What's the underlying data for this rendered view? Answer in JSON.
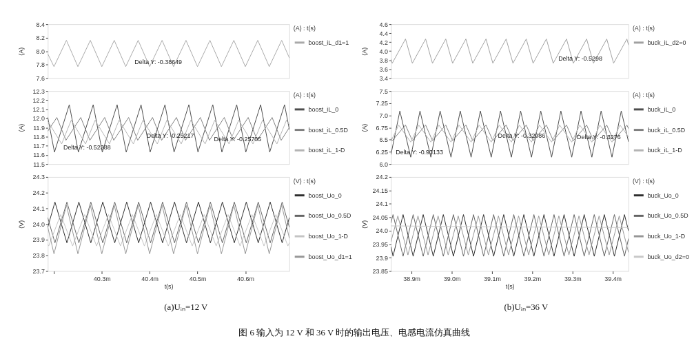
{
  "chart_data": [
    {
      "type": "line",
      "xlim": [
        40.187,
        40.692
      ],
      "ylim": [
        7.6,
        8.4
      ],
      "yticks": [
        7.6,
        7.8,
        {
          "value": 8,
          "label": "8.0"
        },
        8.2,
        8.4
      ],
      "ylabel": "(A)",
      "legend_title": "(A) : t(s)",
      "legend": "right",
      "tick_labels": "y",
      "series": [
        {
          "name": "boost_iL_d1=1",
          "color": "#a9a9a9",
          "x": [
            40.187,
            40.2,
            40.226,
            40.25,
            40.276,
            40.3,
            40.326,
            40.35,
            40.376,
            40.4,
            40.426,
            40.45,
            40.476,
            40.5,
            40.526,
            40.55,
            40.576,
            40.6,
            40.626,
            40.65,
            40.676,
            40.692
          ],
          "values": [
            7.96,
            7.77,
            8.16,
            7.77,
            8.16,
            7.77,
            8.16,
            7.77,
            8.16,
            7.77,
            8.16,
            7.77,
            8.16,
            7.77,
            8.16,
            7.77,
            8.16,
            7.77,
            8.16,
            7.77,
            8.16,
            7.9
          ]
        }
      ],
      "annotations": [
        {
          "text": "Delta Y: -0.38649",
          "x": 40.4,
          "y": 7.77
        }
      ]
    },
    {
      "type": "line",
      "xlim": [
        40.187,
        40.692
      ],
      "ylim": [
        11.5,
        12.3
      ],
      "yticks": [
        11.5,
        11.6,
        11.7,
        11.8,
        11.9,
        {
          "value": 12,
          "label": "12.0"
        },
        12.1,
        12.2,
        12.3
      ],
      "ylabel": "(A)",
      "legend_title": "(A) : t(s)",
      "legend": "right",
      "tick_labels": "y",
      "series": [
        {
          "name": "boost_iL_0",
          "color": "#4d4d4d",
          "x": [
            40.187,
            40.201,
            40.232,
            40.251,
            40.282,
            40.301,
            40.332,
            40.351,
            40.382,
            40.401,
            40.432,
            40.451,
            40.482,
            40.501,
            40.532,
            40.551,
            40.582,
            40.601,
            40.632,
            40.651,
            40.682,
            40.692
          ],
          "values": [
            12.01,
            11.63,
            12.15,
            11.63,
            12.15,
            11.63,
            12.15,
            11.63,
            12.15,
            11.63,
            12.15,
            11.63,
            12.15,
            11.63,
            12.15,
            11.63,
            12.15,
            11.63,
            12.15,
            11.63,
            12.15,
            11.88
          ]
        },
        {
          "name": "boost_iL_0.5D",
          "color": "#7f7f7f",
          "x": [
            40.187,
            40.206,
            40.225,
            40.256,
            40.275,
            40.306,
            40.325,
            40.356,
            40.375,
            40.406,
            40.425,
            40.456,
            40.475,
            40.506,
            40.525,
            40.556,
            40.575,
            40.606,
            40.625,
            40.656,
            40.675,
            40.692
          ],
          "values": [
            11.86,
            12.01,
            11.76,
            12.01,
            11.76,
            12.01,
            11.76,
            12.01,
            11.76,
            12.01,
            11.76,
            12.01,
            11.76,
            12.01,
            11.76,
            12.01,
            11.76,
            12.01,
            11.76,
            12.01,
            11.76,
            11.9
          ]
        },
        {
          "name": "boost_iL_1-D",
          "color": "#b4b4b4",
          "x": [
            40.187,
            40.216,
            40.236,
            40.266,
            40.286,
            40.316,
            40.336,
            40.366,
            40.386,
            40.416,
            40.436,
            40.466,
            40.486,
            40.516,
            40.536,
            40.566,
            40.586,
            40.616,
            40.636,
            40.666,
            40.686,
            40.692
          ],
          "values": [
            11.97,
            11.72,
            11.98,
            11.72,
            11.98,
            11.72,
            11.98,
            11.72,
            11.98,
            11.72,
            11.98,
            11.72,
            11.98,
            11.72,
            11.98,
            11.72,
            11.98,
            11.72,
            11.98,
            11.72,
            11.98,
            11.93
          ]
        }
      ],
      "annotations": [
        {
          "text": "Delta Y: -0.52388",
          "x": 40.251,
          "y": 11.63
        },
        {
          "text": "Delta Y: -0.25217",
          "x": 40.425,
          "y": 11.76
        },
        {
          "text": "Delta Y: -0.25705",
          "x": 40.566,
          "y": 11.72
        }
      ]
    },
    {
      "type": "line",
      "xlim": [
        40.187,
        40.692
      ],
      "ylim": [
        23.7,
        24.3
      ],
      "xticks": [
        {
          "value": 40.2,
          "label": null
        },
        {
          "value": 40.3,
          "label": "40.3m"
        },
        {
          "value": 40.4,
          "label": "40.4m"
        },
        {
          "value": 40.5,
          "label": "40.5m"
        },
        {
          "value": 40.6,
          "label": "40.6m"
        }
      ],
      "yticks": [
        23.7,
        23.8,
        23.9,
        {
          "value": 24,
          "label": "24.0"
        },
        24.1,
        24.2,
        24.3
      ],
      "xlabel": "t(s)",
      "ylabel": "(V)",
      "legend_title": "(V) : t(s)",
      "legend": "right",
      "series": [
        {
          "name": "boost_Uo_0",
          "color": "#2e2e2e",
          "x": [
            40.187,
            40.202,
            40.227,
            40.252,
            40.277,
            40.302,
            40.327,
            40.352,
            40.377,
            40.402,
            40.427,
            40.452,
            40.477,
            40.502,
            40.527,
            40.552,
            40.577,
            40.602,
            40.627,
            40.652,
            40.677,
            40.692
          ],
          "values": [
            23.98,
            24.14,
            23.88,
            24.14,
            23.88,
            24.14,
            23.88,
            24.14,
            23.88,
            24.14,
            23.88,
            24.14,
            23.88,
            24.14,
            23.88,
            24.14,
            23.88,
            24.14,
            23.88,
            24.14,
            23.88,
            24.04
          ]
        },
        {
          "name": "boost_Uo_0.5D",
          "color": "#646464",
          "x": [
            40.187,
            40.202,
            40.227,
            40.252,
            40.277,
            40.302,
            40.327,
            40.352,
            40.377,
            40.402,
            40.427,
            40.452,
            40.477,
            40.502,
            40.527,
            40.552,
            40.577,
            40.602,
            40.627,
            40.652,
            40.677,
            40.692
          ],
          "values": [
            24.04,
            23.88,
            24.14,
            23.88,
            24.14,
            23.88,
            24.14,
            23.88,
            24.14,
            23.88,
            24.14,
            23.88,
            24.14,
            23.88,
            24.14,
            23.88,
            24.14,
            23.88,
            24.14,
            23.88,
            24.14,
            23.98
          ]
        },
        {
          "name": "boost_Uo_1-D",
          "color": "#c4c4c4",
          "x": [
            40.187,
            40.189,
            40.214,
            40.239,
            40.264,
            40.289,
            40.314,
            40.339,
            40.364,
            40.389,
            40.414,
            40.439,
            40.464,
            40.489,
            40.514,
            40.539,
            40.564,
            40.589,
            40.614,
            40.639,
            40.664,
            40.689,
            40.692
          ],
          "values": [
            23.87,
            23.86,
            24.06,
            23.86,
            24.06,
            23.86,
            24.06,
            23.86,
            24.06,
            23.86,
            24.06,
            23.86,
            24.06,
            23.86,
            24.06,
            23.86,
            24.06,
            23.86,
            24.06,
            23.86,
            24.06,
            23.86,
            23.88
          ]
        },
        {
          "name": "boost_Uo_d1=1",
          "color": "#969696",
          "x": [
            40.187,
            40.2,
            40.226,
            40.25,
            40.276,
            40.3,
            40.326,
            40.35,
            40.376,
            40.4,
            40.426,
            40.45,
            40.476,
            40.5,
            40.526,
            40.55,
            40.576,
            40.6,
            40.626,
            40.65,
            40.676,
            40.692
          ],
          "values": [
            23.98,
            23.81,
            24.12,
            23.81,
            24.12,
            23.81,
            24.12,
            23.81,
            24.12,
            23.81,
            24.12,
            23.81,
            24.12,
            23.81,
            24.12,
            23.81,
            24.12,
            23.81,
            24.12,
            23.81,
            24.12,
            23.91
          ]
        }
      ],
      "annotations": [
        "(a)Uᵢₙ=12 V"
      ]
    },
    {
      "type": "line",
      "xlim": [
        38.849,
        39.439
      ],
      "ylim": [
        3.4,
        4.6
      ],
      "yticks": [
        3.4,
        3.6,
        3.8,
        {
          "value": 4,
          "label": "4.0"
        },
        4.2,
        4.4,
        4.6
      ],
      "ylabel": "(A)",
      "legend_title": "(A) : t(s)",
      "legend": "right",
      "tick_labels": "y",
      "series": [
        {
          "name": "buck_iL_d2=0",
          "color": "#a0a0a0",
          "x": [
            38.849,
            38.852,
            38.885,
            38.902,
            38.935,
            38.952,
            38.985,
            39.002,
            39.035,
            39.052,
            39.085,
            39.102,
            39.135,
            39.152,
            39.185,
            39.202,
            39.235,
            39.252,
            39.285,
            39.302,
            39.335,
            39.352,
            39.385,
            39.402,
            39.435,
            39.439
          ],
          "values": [
            3.82,
            3.73,
            4.27,
            3.73,
            4.27,
            3.73,
            4.27,
            3.73,
            4.27,
            3.73,
            4.27,
            3.73,
            4.27,
            3.73,
            4.27,
            3.73,
            4.27,
            3.73,
            4.27,
            3.73,
            4.27,
            3.73,
            4.27,
            3.73,
            4.27,
            4.14
          ]
        }
      ],
      "annotations": [
        {
          "text": "Delta Y: -0.5298",
          "x": 39.302,
          "y": 3.73
        }
      ]
    },
    {
      "type": "line",
      "xlim": [
        38.849,
        39.439
      ],
      "ylim": [
        6,
        7.5
      ],
      "yticks": [
        {
          "value": 6,
          "label": "6.0"
        },
        6.25,
        6.5,
        6.75,
        {
          "value": 7,
          "label": "7.0"
        },
        7.25,
        7.5
      ],
      "ylabel": "(A)",
      "legend_title": "(A) : t(s)",
      "legend": "right",
      "tick_labels": "y",
      "series": [
        {
          "name": "buck_iL_0",
          "color": "#4d4d4d",
          "x": [
            38.849,
            38.871,
            38.898,
            38.921,
            38.948,
            38.971,
            38.998,
            39.021,
            39.048,
            39.071,
            39.098,
            39.121,
            39.148,
            39.171,
            39.198,
            39.221,
            39.248,
            39.271,
            39.298,
            39.321,
            39.348,
            39.371,
            39.398,
            39.421,
            39.439
          ],
          "values": [
            6.2,
            7.09,
            6.14,
            7.09,
            6.14,
            7.09,
            6.14,
            7.09,
            6.14,
            7.09,
            6.14,
            7.09,
            6.14,
            7.09,
            6.14,
            7.09,
            6.14,
            7.09,
            6.14,
            7.09,
            6.14,
            7.09,
            6.14,
            7.09,
            6.46
          ]
        },
        {
          "name": "buck_iL_0.5D",
          "color": "#7f7f7f",
          "x": [
            38.849,
            38.852,
            38.885,
            38.902,
            38.935,
            38.952,
            38.985,
            39.002,
            39.035,
            39.052,
            39.085,
            39.102,
            39.135,
            39.152,
            39.185,
            39.202,
            39.235,
            39.252,
            39.285,
            39.302,
            39.335,
            39.352,
            39.385,
            39.402,
            39.435,
            39.439
          ],
          "values": [
            6.54,
            6.48,
            6.8,
            6.48,
            6.8,
            6.48,
            6.8,
            6.48,
            6.8,
            6.48,
            6.8,
            6.48,
            6.8,
            6.48,
            6.8,
            6.48,
            6.8,
            6.48,
            6.8,
            6.48,
            6.8,
            6.48,
            6.8,
            6.48,
            6.8,
            6.73
          ]
        },
        {
          "name": "buck_iL_1-D",
          "color": "#b4b4b4",
          "x": [
            38.849,
            38.868,
            38.898,
            38.918,
            38.948,
            38.968,
            38.998,
            39.018,
            39.048,
            39.068,
            39.098,
            39.118,
            39.148,
            39.168,
            39.198,
            39.218,
            39.248,
            39.268,
            39.298,
            39.318,
            39.348,
            39.368,
            39.398,
            39.418,
            39.439
          ],
          "values": [
            6.47,
            6.8,
            6.45,
            6.8,
            6.45,
            6.8,
            6.45,
            6.8,
            6.45,
            6.8,
            6.45,
            6.8,
            6.45,
            6.8,
            6.45,
            6.8,
            6.45,
            6.8,
            6.45,
            6.8,
            6.45,
            6.8,
            6.45,
            6.8,
            6.56
          ]
        }
      ],
      "annotations": [
        {
          "text": "Delta Y: -0.93133",
          "x": 38.898,
          "y": 6.14
        },
        {
          "text": "Delta Y: -0.32086",
          "x": 39.152,
          "y": 6.48
        },
        {
          "text": "Delta Y: -0.3276",
          "x": 39.348,
          "y": 6.45
        }
      ]
    },
    {
      "type": "line",
      "xlim": [
        38.849,
        39.439
      ],
      "ylim": [
        23.85,
        24.2
      ],
      "xticks": [
        {
          "value": 38.9,
          "label": "38.9m"
        },
        {
          "value": 39,
          "label": "39.0m"
        },
        {
          "value": 39.1,
          "label": "39.1m"
        },
        {
          "value": 39.2,
          "label": "39.2m"
        },
        {
          "value": 39.3,
          "label": "39.3m"
        },
        {
          "value": 39.4,
          "label": "39.4m"
        }
      ],
      "yticks": [
        23.85,
        23.9,
        23.95,
        {
          "value": 24,
          "label": "24.0"
        },
        24.05,
        24.1,
        24.15,
        24.2
      ],
      "xlabel": "t(s)",
      "ylabel": "(V)",
      "legend_title": "(V) : t(s)",
      "legend": "right",
      "series": [
        {
          "name": "buck_Uo_0",
          "color": "#2e2e2e",
          "x": [
            38.849,
            38.854,
            38.879,
            38.904,
            38.929,
            38.954,
            38.979,
            39.004,
            39.029,
            39.054,
            39.079,
            39.104,
            39.129,
            39.154,
            39.179,
            39.204,
            39.229,
            39.254,
            39.279,
            39.304,
            39.329,
            39.354,
            39.379,
            39.404,
            39.429,
            39.439
          ],
          "values": [
            23.94,
            23.905,
            24.06,
            23.905,
            24.06,
            23.905,
            24.06,
            23.905,
            24.06,
            23.905,
            24.06,
            23.905,
            24.06,
            23.905,
            24.06,
            23.905,
            24.06,
            23.905,
            24.06,
            23.905,
            24.06,
            23.905,
            24.06,
            23.905,
            24.06,
            24.0
          ]
        },
        {
          "name": "buck_Uo_0.5D",
          "color": "#646464",
          "x": [
            38.849,
            38.854,
            38.879,
            38.904,
            38.929,
            38.954,
            38.979,
            39.004,
            39.029,
            39.054,
            39.079,
            39.104,
            39.129,
            39.154,
            39.179,
            39.204,
            39.229,
            39.254,
            39.279,
            39.304,
            39.329,
            39.354,
            39.379,
            39.404,
            39.429,
            39.439
          ],
          "values": [
            24.03,
            24.06,
            23.905,
            24.06,
            23.905,
            24.06,
            23.905,
            24.06,
            23.905,
            24.06,
            23.905,
            24.06,
            23.905,
            24.06,
            23.905,
            24.06,
            23.905,
            24.06,
            23.905,
            24.06,
            23.905,
            24.06,
            23.905,
            24.06,
            23.905,
            23.97
          ]
        },
        {
          "name": "buck_Uo_1-D",
          "color": "#969696",
          "x": [
            38.849,
            38.866,
            38.891,
            38.916,
            38.941,
            38.966,
            38.991,
            39.016,
            39.041,
            39.066,
            39.091,
            39.116,
            39.141,
            39.166,
            39.191,
            39.216,
            39.241,
            39.266,
            39.291,
            39.316,
            39.341,
            39.366,
            39.391,
            39.416,
            39.439
          ],
          "values": [
            23.96,
            24.055,
            23.91,
            24.055,
            23.91,
            24.055,
            23.91,
            24.055,
            23.91,
            24.055,
            23.91,
            24.055,
            23.91,
            24.055,
            23.91,
            24.055,
            23.91,
            24.055,
            23.91,
            24.055,
            23.91,
            24.055,
            23.91,
            24.055,
            23.92
          ]
        },
        {
          "name": "buck_Uo_d2=0",
          "color": "#c8c8c8",
          "x": [
            38.849,
            39.0,
            39.15,
            39.3,
            39.439
          ],
          "values": [
            24.018,
            24.016,
            24.014,
            24.013,
            24.012
          ]
        }
      ],
      "annotations": [
        "(b)Uᵢₙ=36 V",
        "图 6  输入为 12 V 和 36 V 时的输出电压、电感电流仿真曲线"
      ]
    }
  ]
}
